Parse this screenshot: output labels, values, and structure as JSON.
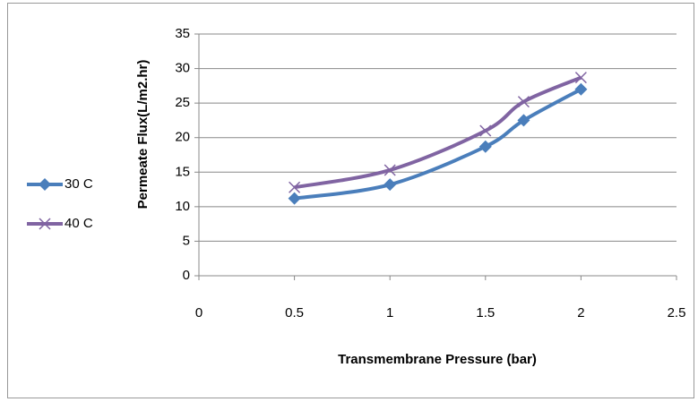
{
  "chart_data": {
    "type": "line",
    "x_label": "Transmembrane Pressure (bar)",
    "y_label": "Permeate Flux(L/m2.hr)",
    "x": [
      0.5,
      1,
      1.5,
      1.7,
      2
    ],
    "series": [
      {
        "name": "30 C",
        "color": "#4a7ebb",
        "marker": "diamond",
        "values": [
          11.2,
          13.2,
          18.7,
          22.5,
          27
        ]
      },
      {
        "name": "40 C",
        "color": "#8064a2",
        "marker": "x",
        "values": [
          12.8,
          15.3,
          21,
          25.2,
          28.7
        ]
      }
    ],
    "xlim": [
      0,
      2.5
    ],
    "xticks": [
      0,
      0.5,
      1,
      1.5,
      2,
      2.5
    ],
    "ylim": [
      0,
      35
    ],
    "yticks": [
      0,
      5,
      10,
      15,
      20,
      25,
      30,
      35
    ],
    "grid": true,
    "legend": "left"
  }
}
